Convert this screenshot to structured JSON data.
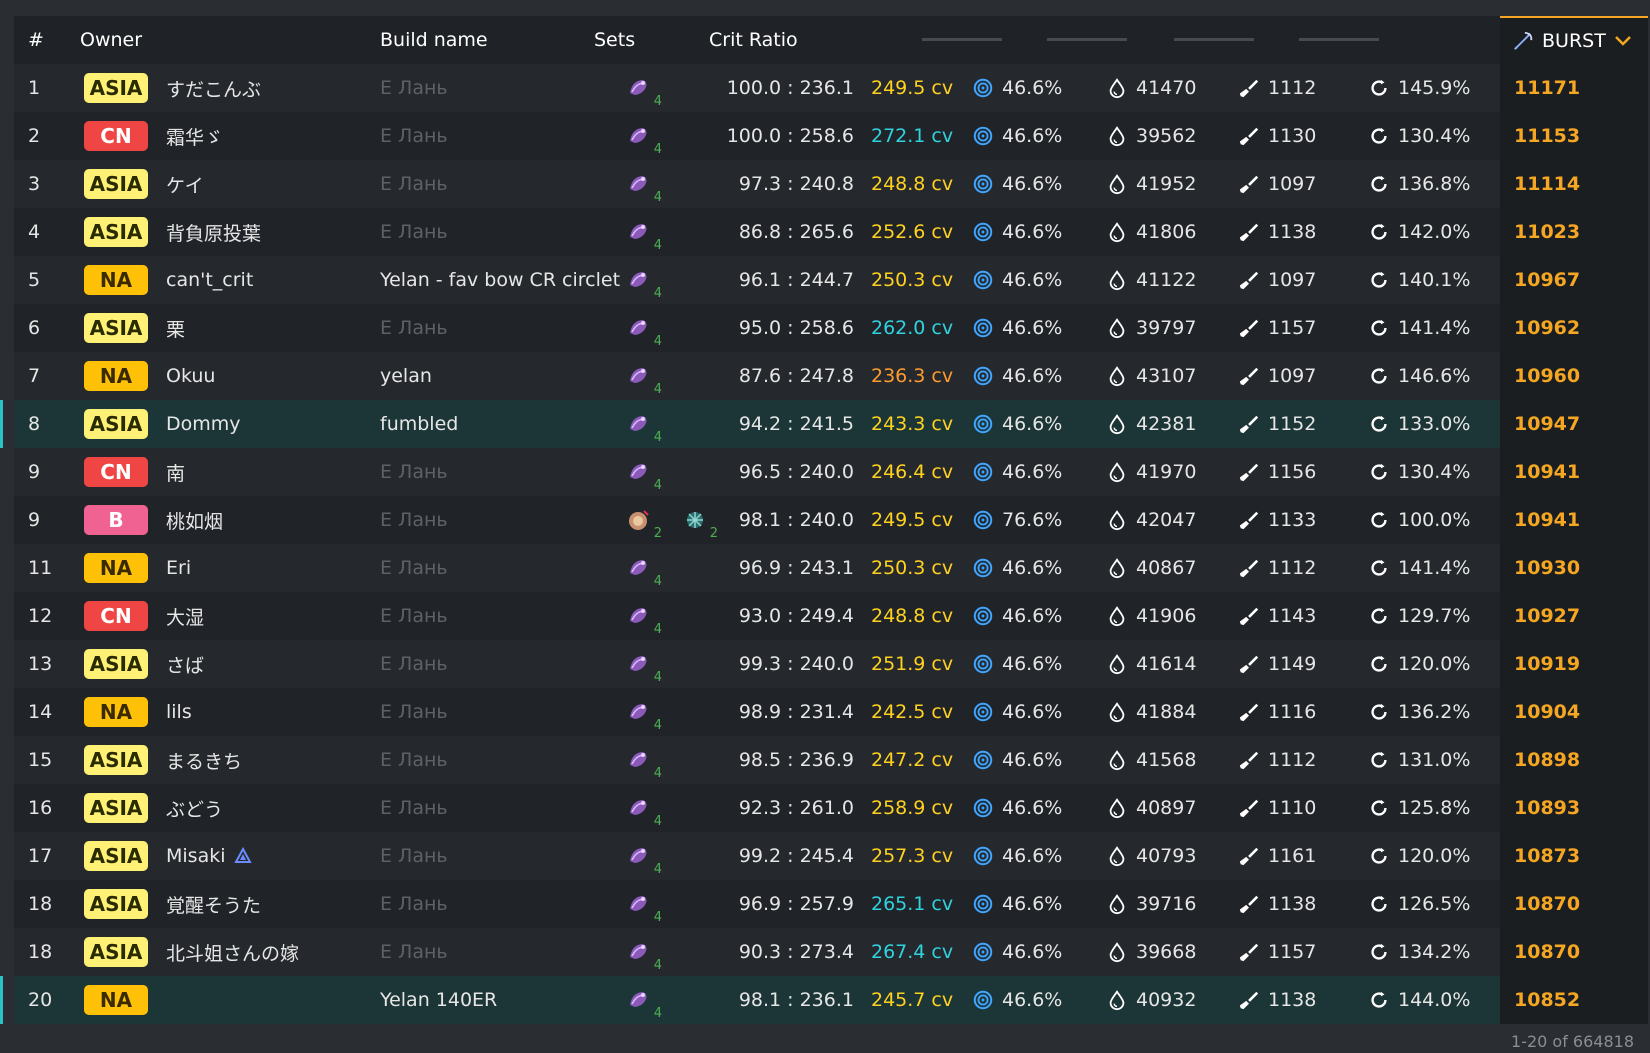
{
  "header": {
    "rank": "#",
    "owner": "Owner",
    "build": "Build name",
    "sets": "Sets",
    "crit_ratio": "Crit Ratio",
    "burst": "BURST"
  },
  "footer": "1-20 of 664818",
  "colors": {
    "asia": "#fff176",
    "cn": "#ef4545",
    "na": "#ffc107",
    "b": "#f06292",
    "burst": "#f5a623",
    "highlight": "#2bc4c4"
  },
  "rows": [
    {
      "rank": "1",
      "region": "ASIA",
      "name": "すだこんぶ",
      "build": "Е Лань",
      "build_custom": false,
      "sets": [
        [
          "set-4",
          "4"
        ]
      ],
      "ratio": "100.0 : 236.1",
      "cv": "249.5 cv",
      "cv_color": "yellow",
      "er": "46.6%",
      "hp": "41470",
      "atk": "1112",
      "er2": "145.9%",
      "burst": "11171"
    },
    {
      "rank": "2",
      "region": "CN",
      "name": "霜华ゞ",
      "build": "Е Лань",
      "build_custom": false,
      "sets": [
        [
          "set-4",
          "4"
        ]
      ],
      "ratio": "100.0 : 258.6",
      "cv": "272.1 cv",
      "cv_color": "cyan",
      "er": "46.6%",
      "hp": "39562",
      "atk": "1130",
      "er2": "130.4%",
      "burst": "11153"
    },
    {
      "rank": "3",
      "region": "ASIA",
      "name": "ケイ",
      "build": "Е Лань",
      "build_custom": false,
      "sets": [
        [
          "set-4",
          "4"
        ]
      ],
      "ratio": "97.3 : 240.8",
      "cv": "248.8 cv",
      "cv_color": "yellow",
      "er": "46.6%",
      "hp": "41952",
      "atk": "1097",
      "er2": "136.8%",
      "burst": "11114"
    },
    {
      "rank": "4",
      "region": "ASIA",
      "name": "背負原投葉",
      "build": "Е Лань",
      "build_custom": false,
      "sets": [
        [
          "set-4",
          "4"
        ]
      ],
      "ratio": "86.8 : 265.6",
      "cv": "252.6 cv",
      "cv_color": "yellow",
      "er": "46.6%",
      "hp": "41806",
      "atk": "1138",
      "er2": "142.0%",
      "burst": "11023"
    },
    {
      "rank": "5",
      "region": "NA",
      "name": "can't_crit",
      "build": "Yelan - fav bow CR circlet",
      "build_custom": true,
      "sets": [
        [
          "set-4",
          "4"
        ]
      ],
      "ratio": "96.1 : 244.7",
      "cv": "250.3 cv",
      "cv_color": "yellow",
      "er": "46.6%",
      "hp": "41122",
      "atk": "1097",
      "er2": "140.1%",
      "burst": "10967"
    },
    {
      "rank": "6",
      "region": "ASIA",
      "name": "栗",
      "build": "Е Лань",
      "build_custom": false,
      "sets": [
        [
          "set-4",
          "4"
        ]
      ],
      "ratio": "95.0 : 258.6",
      "cv": "262.0 cv",
      "cv_color": "cyan",
      "er": "46.6%",
      "hp": "39797",
      "atk": "1157",
      "er2": "141.4%",
      "burst": "10962"
    },
    {
      "rank": "7",
      "region": "NA",
      "name": "Okuu",
      "build": "yelan",
      "build_custom": true,
      "sets": [
        [
          "set-4",
          "4"
        ]
      ],
      "ratio": "87.6 : 247.8",
      "cv": "236.3 cv",
      "cv_color": "orange",
      "er": "46.6%",
      "hp": "43107",
      "atk": "1097",
      "er2": "146.6%",
      "burst": "10960"
    },
    {
      "rank": "8",
      "region": "ASIA",
      "name": "Dommy",
      "build": "fumbled",
      "build_custom": true,
      "highlight": true,
      "sets": [
        [
          "set-4",
          "4"
        ]
      ],
      "ratio": "94.2 : 241.5",
      "cv": "243.3 cv",
      "cv_color": "yellow",
      "er": "46.6%",
      "hp": "42381",
      "atk": "1152",
      "er2": "133.0%",
      "burst": "10947"
    },
    {
      "rank": "9",
      "region": "CN",
      "name": "南",
      "build": "Е Лань",
      "build_custom": false,
      "sets": [
        [
          "set-4",
          "4"
        ]
      ],
      "ratio": "96.5 : 240.0",
      "cv": "246.4 cv",
      "cv_color": "yellow",
      "er": "46.6%",
      "hp": "41970",
      "atk": "1156",
      "er2": "130.4%",
      "burst": "10941"
    },
    {
      "rank": "9",
      "region": "B",
      "name": "桃如烟",
      "build": "Е Лань",
      "build_custom": false,
      "sets": [
        [
          "set-2a",
          "2"
        ],
        [
          "set-2b",
          "2"
        ]
      ],
      "ratio": "98.1 : 240.0",
      "cv": "249.5 cv",
      "cv_color": "yellow",
      "er": "76.6%",
      "hp": "42047",
      "atk": "1133",
      "er2": "100.0%",
      "burst": "10941"
    },
    {
      "rank": "11",
      "region": "NA",
      "name": "Eri",
      "build": "Е Лань",
      "build_custom": false,
      "sets": [
        [
          "set-4",
          "4"
        ]
      ],
      "ratio": "96.9 : 243.1",
      "cv": "250.3 cv",
      "cv_color": "yellow",
      "er": "46.6%",
      "hp": "40867",
      "atk": "1112",
      "er2": "141.4%",
      "burst": "10930"
    },
    {
      "rank": "12",
      "region": "CN",
      "name": "大湿",
      "build": "Е Лань",
      "build_custom": false,
      "sets": [
        [
          "set-4",
          "4"
        ]
      ],
      "ratio": "93.0 : 249.4",
      "cv": "248.8 cv",
      "cv_color": "yellow",
      "er": "46.6%",
      "hp": "41906",
      "atk": "1143",
      "er2": "129.7%",
      "burst": "10927"
    },
    {
      "rank": "13",
      "region": "ASIA",
      "name": "さば",
      "build": "Е Лань",
      "build_custom": false,
      "sets": [
        [
          "set-4",
          "4"
        ]
      ],
      "ratio": "99.3 : 240.0",
      "cv": "251.9 cv",
      "cv_color": "yellow",
      "er": "46.6%",
      "hp": "41614",
      "atk": "1149",
      "er2": "120.0%",
      "burst": "10919"
    },
    {
      "rank": "14",
      "region": "NA",
      "name": "lils",
      "build": "Е Лань",
      "build_custom": false,
      "sets": [
        [
          "set-4",
          "4"
        ]
      ],
      "ratio": "98.9 : 231.4",
      "cv": "242.5 cv",
      "cv_color": "yellow",
      "er": "46.6%",
      "hp": "41884",
      "atk": "1116",
      "er2": "136.2%",
      "burst": "10904"
    },
    {
      "rank": "15",
      "region": "ASIA",
      "name": "まるきち",
      "build": "Е Лань",
      "build_custom": false,
      "sets": [
        [
          "set-4",
          "4"
        ]
      ],
      "ratio": "98.5 : 236.9",
      "cv": "247.2 cv",
      "cv_color": "yellow",
      "er": "46.6%",
      "hp": "41568",
      "atk": "1112",
      "er2": "131.0%",
      "burst": "10898"
    },
    {
      "rank": "16",
      "region": "ASIA",
      "name": "ぶどう",
      "build": "Е Лань",
      "build_custom": false,
      "sets": [
        [
          "set-4",
          "4"
        ]
      ],
      "ratio": "92.3 : 261.0",
      "cv": "258.9 cv",
      "cv_color": "yellow",
      "er": "46.6%",
      "hp": "40897",
      "atk": "1110",
      "er2": "125.8%",
      "burst": "10893"
    },
    {
      "rank": "17",
      "region": "ASIA",
      "name": "Misaki",
      "badge_icon": true,
      "build": "Е Лань",
      "build_custom": false,
      "sets": [
        [
          "set-4",
          "4"
        ]
      ],
      "ratio": "99.2 : 245.4",
      "cv": "257.3 cv",
      "cv_color": "yellow",
      "er": "46.6%",
      "hp": "40793",
      "atk": "1161",
      "er2": "120.0%",
      "burst": "10873"
    },
    {
      "rank": "18",
      "region": "ASIA",
      "name": "覚醒そうた",
      "build": "Е Лань",
      "build_custom": false,
      "sets": [
        [
          "set-4",
          "4"
        ]
      ],
      "ratio": "96.9 : 257.9",
      "cv": "265.1 cv",
      "cv_color": "cyan",
      "er": "46.6%",
      "hp": "39716",
      "atk": "1138",
      "er2": "126.5%",
      "burst": "10870"
    },
    {
      "rank": "18",
      "region": "ASIA",
      "name": "北斗姐さんの嫁",
      "build": "Е Лань",
      "build_custom": false,
      "sets": [
        [
          "set-4",
          "4"
        ]
      ],
      "ratio": "90.3 : 273.4",
      "cv": "267.4 cv",
      "cv_color": "cyan",
      "er": "46.6%",
      "hp": "39668",
      "atk": "1157",
      "er2": "134.2%",
      "burst": "10870"
    },
    {
      "rank": "20",
      "region": "NA",
      "name": "",
      "build": "Yelan 140ER",
      "build_custom": true,
      "highlight": true,
      "sets": [
        [
          "set-4",
          "4"
        ]
      ],
      "ratio": "98.1 : 236.1",
      "cv": "245.7 cv",
      "cv_color": "yellow",
      "er": "46.6%",
      "hp": "40932",
      "atk": "1138",
      "er2": "144.0%",
      "burst": "10852"
    }
  ]
}
